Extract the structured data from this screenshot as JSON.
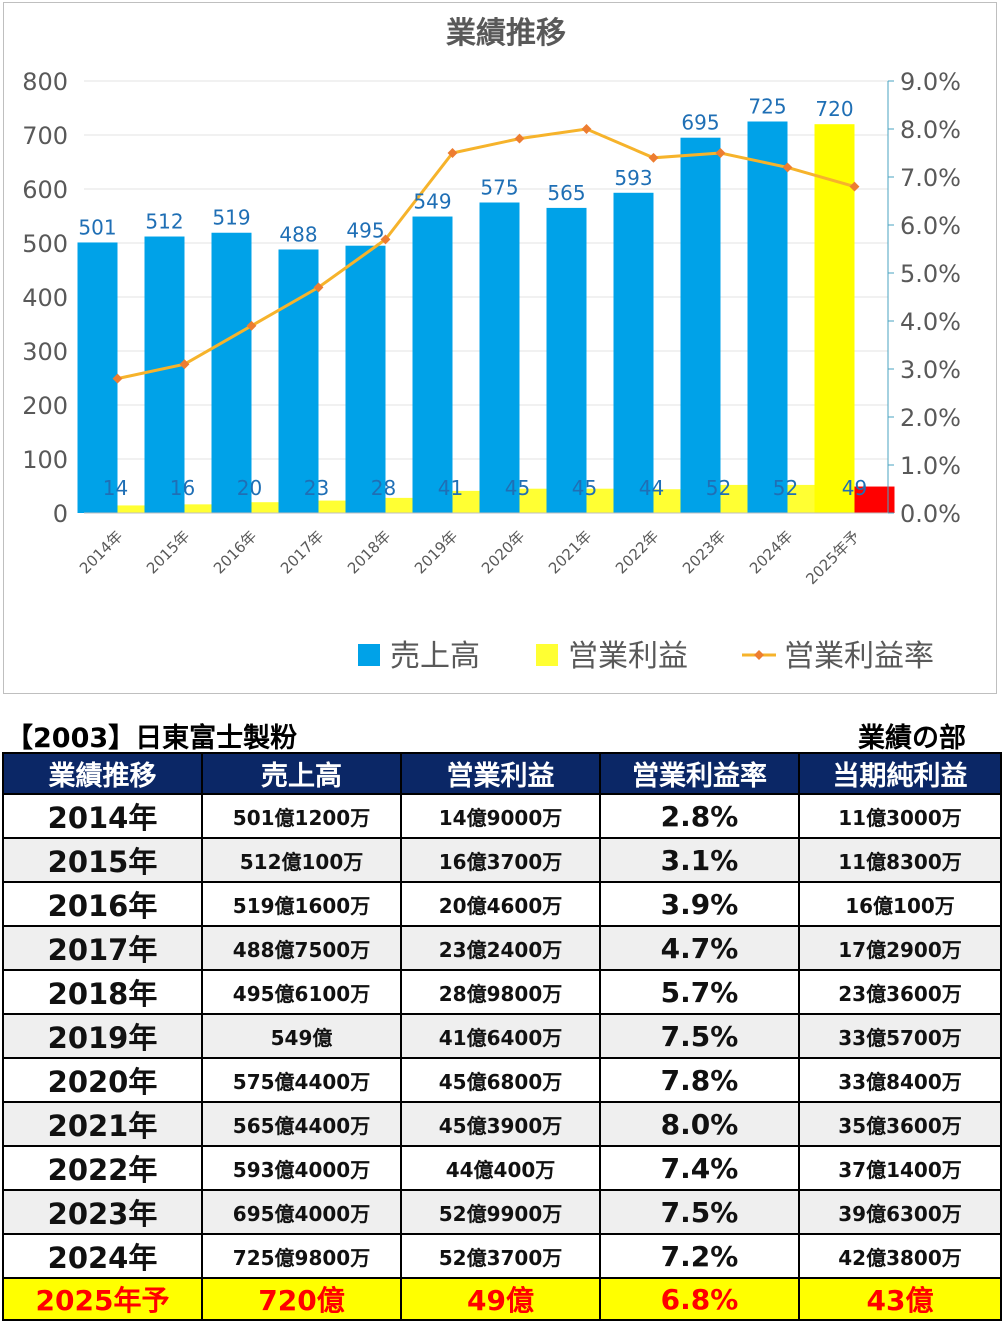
{
  "chart_data": {
    "type": "bar",
    "title": "業績推移",
    "categories": [
      "2014年",
      "2015年",
      "2016年",
      "2017年",
      "2018年",
      "2019年",
      "2020年",
      "2021年",
      "2022年",
      "2023年",
      "2024年",
      "2025年予"
    ],
    "series": [
      {
        "name": "売上高",
        "kind": "bar",
        "axis": "left",
        "color": "#00a2e8",
        "values": [
          501,
          512,
          519,
          488,
          495,
          549,
          575,
          565,
          593,
          695,
          725,
          720
        ],
        "highlight_last_color": "#ffff00"
      },
      {
        "name": "営業利益",
        "kind": "bar",
        "axis": "left",
        "color": "#ffff33",
        "values": [
          14,
          16,
          20,
          23,
          28,
          41,
          45,
          45,
          44,
          52,
          52,
          49
        ],
        "highlight_last_color": "#ff0000"
      },
      {
        "name": "営業利益率",
        "kind": "line",
        "axis": "right",
        "color": "#f6b32b",
        "values": [
          2.8,
          3.1,
          3.9,
          4.7,
          5.7,
          7.5,
          7.8,
          8.0,
          7.4,
          7.5,
          7.2,
          6.8
        ]
      }
    ],
    "left_axis": {
      "ylim": [
        0,
        800
      ],
      "ticks": [
        "0",
        "100",
        "200",
        "300",
        "400",
        "500",
        "600",
        "700",
        "800"
      ]
    },
    "right_axis": {
      "ylim": [
        0,
        9
      ],
      "ticks": [
        "0.0%",
        "1.0%",
        "2.0%",
        "3.0%",
        "4.0%",
        "5.0%",
        "6.0%",
        "7.0%",
        "8.0%",
        "9.0%"
      ]
    },
    "grid": true,
    "legend_position": "bottom"
  },
  "company_title": "【2003】日東富士製粉",
  "section_title": "業績の部",
  "table": {
    "headers": [
      "業績推移",
      "売上高",
      "営業利益",
      "営業利益率",
      "当期純利益"
    ],
    "rows": [
      [
        "2014年",
        "501億1200万",
        "14億9000万",
        "2.8%",
        "11億3000万"
      ],
      [
        "2015年",
        "512億100万",
        "16億3700万",
        "3.1%",
        "11億8300万"
      ],
      [
        "2016年",
        "519億1600万",
        "20億4600万",
        "3.9%",
        "16億100万"
      ],
      [
        "2017年",
        "488億7500万",
        "23億2400万",
        "4.7%",
        "17億2900万"
      ],
      [
        "2018年",
        "495億6100万",
        "28億9800万",
        "5.7%",
        "23億3600万"
      ],
      [
        "2019年",
        "549億",
        "41億6400万",
        "7.5%",
        "33億5700万"
      ],
      [
        "2020年",
        "575億4400万",
        "45億6800万",
        "7.8%",
        "33億8400万"
      ],
      [
        "2021年",
        "565億4400万",
        "45億3900万",
        "8.0%",
        "35億3600万"
      ],
      [
        "2022年",
        "593億4000万",
        "44億400万",
        "7.4%",
        "37億1400万"
      ],
      [
        "2023年",
        "695億4000万",
        "52億9900万",
        "7.5%",
        "39億6300万"
      ],
      [
        "2024年",
        "725億9800万",
        "52億3700万",
        "7.2%",
        "42億3800万"
      ]
    ],
    "forecast_row": [
      "2025年予",
      "720億",
      "49億",
      "6.8%",
      "43億"
    ]
  }
}
